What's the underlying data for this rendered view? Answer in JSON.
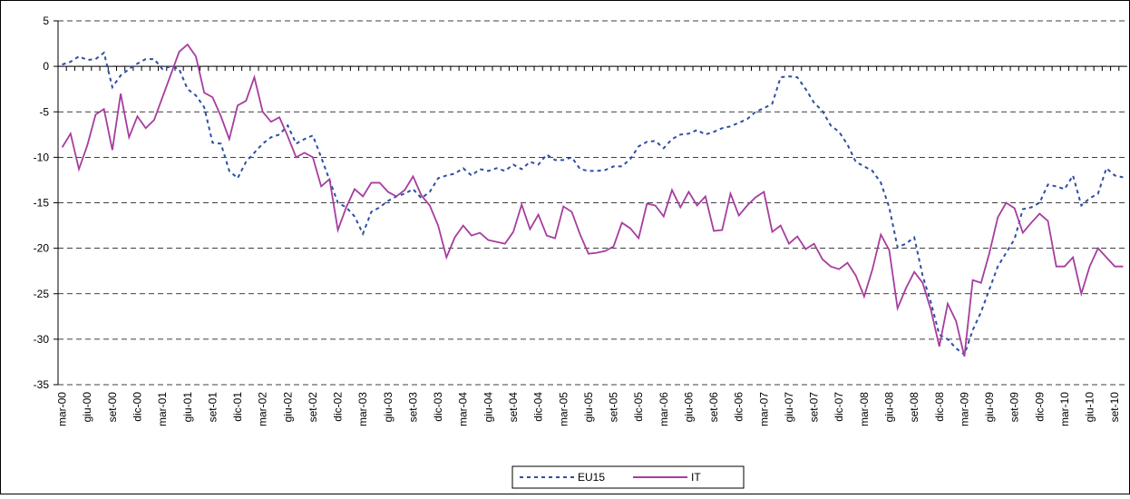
{
  "chart_data": {
    "type": "line",
    "categories": [
      "mar-00",
      null,
      null,
      "giu-00",
      null,
      null,
      "set-00",
      null,
      null,
      "dic-00",
      null,
      null,
      "mar-01",
      null,
      null,
      "giu-01",
      null,
      null,
      "set-01",
      null,
      null,
      "dic-01",
      null,
      null,
      "mar-02",
      null,
      null,
      "giu-02",
      null,
      null,
      "set-02",
      null,
      null,
      "dic-02",
      null,
      null,
      "mar-03",
      null,
      null,
      "giu-03",
      null,
      null,
      "set-03",
      null,
      null,
      "dic-03",
      null,
      null,
      "mar-04",
      null,
      null,
      "giu-04",
      null,
      null,
      "set-04",
      null,
      null,
      "dic-04",
      null,
      null,
      "mar-05",
      null,
      null,
      "giu-05",
      null,
      null,
      "set-05",
      null,
      null,
      "dic-05",
      null,
      null,
      "mar-06",
      null,
      null,
      "giu-06",
      null,
      null,
      "set-06",
      null,
      null,
      "dic-06",
      null,
      null,
      "mar-07",
      null,
      null,
      "giu-07",
      null,
      null,
      "set-07",
      null,
      null,
      "dic-07",
      null,
      null,
      "mar-08",
      null,
      null,
      "giu-08",
      null,
      null,
      "set-08",
      null,
      null,
      "dic-08",
      null,
      null,
      "mar-09",
      null,
      null,
      "giu-09",
      null,
      null,
      "set-09",
      null,
      null,
      "dic-09",
      null,
      null,
      "mar-10",
      null,
      null,
      "giu-10",
      null,
      null,
      "set-10",
      null
    ],
    "series": [
      {
        "name": "EU15",
        "color": "#2e4fa3",
        "style": "dashed",
        "values": [
          0.2,
          0.5,
          1.1,
          0.7,
          0.8,
          1.5,
          -2.3,
          -1,
          -0.3,
          0.3,
          0.8,
          0.8,
          -0.3,
          0,
          -0.3,
          -2.5,
          -3.2,
          -4.5,
          -8.4,
          -8.5,
          -11.5,
          -12.3,
          -10.5,
          -9.5,
          -8.5,
          -7.8,
          -7.5,
          -6.5,
          -8.5,
          -8,
          -7.6,
          -10,
          -12.5,
          -15,
          -15.5,
          -16.5,
          -18.4,
          -16,
          -15.5,
          -14.8,
          -14.3,
          -14,
          -13.5,
          -14.5,
          -13.8,
          -12.3,
          -12,
          -11.8,
          -11.2,
          -12,
          -11.3,
          -11.5,
          -11.2,
          -11.5,
          -10.8,
          -11.3,
          -10.5,
          -10.8,
          -9.7,
          -10.3,
          -10.3,
          -10,
          -11.3,
          -11.5,
          -11.5,
          -11.4,
          -11,
          -11,
          -10.2,
          -8.8,
          -8.3,
          -8.2,
          -9,
          -8,
          -7.5,
          -7.4,
          -7,
          -7.5,
          -7.2,
          -6.8,
          -6.6,
          -6.2,
          -5.8,
          -5,
          -4.6,
          -4.1,
          -1.2,
          -1.1,
          -1.2,
          -2.5,
          -4,
          -4.9,
          -6.5,
          -7.2,
          -8.6,
          -10.5,
          -11,
          -11.5,
          -12.8,
          -15.5,
          -19.9,
          -19.5,
          -18.8,
          -23,
          -26,
          -29.5,
          -30,
          -31,
          -31.7,
          -29,
          -27,
          -24.5,
          -22,
          -20.5,
          -19,
          -15.7,
          -15.5,
          -15,
          -13,
          -13.2,
          -13.5,
          -12,
          -15.3,
          -14.5,
          -14,
          -11.2,
          -12,
          -12.2
        ]
      },
      {
        "name": "IT",
        "color": "#a63d9f",
        "style": "solid",
        "values": [
          -8.9,
          -7.4,
          -11.3,
          -8.7,
          -5.3,
          -4.7,
          -9.2,
          -3,
          -7.8,
          -5.5,
          -6.8,
          -5.9,
          -3.4,
          -0.9,
          1.6,
          2.4,
          1.1,
          -2.9,
          -3.4,
          -5.5,
          -8,
          -4.3,
          -3.8,
          -1.2,
          -5,
          -6.1,
          -5.6,
          -7.7,
          -10,
          -9.5,
          -10,
          -13.2,
          -12.4,
          -18,
          -15.5,
          -13.5,
          -14.3,
          -12.8,
          -12.8,
          -13.8,
          -14.3,
          -13.6,
          -12.1,
          -14.2,
          -15.3,
          -17.5,
          -21,
          -18.8,
          -17.5,
          -18.6,
          -18.3,
          -19.1,
          -19.3,
          -19.5,
          -18.2,
          -15.2,
          -17.9,
          -16.3,
          -18.6,
          -18.9,
          -15.4,
          -16,
          -18.5,
          -20.6,
          -20.5,
          -20.3,
          -19.8,
          -17.2,
          -17.8,
          -18.9,
          -15.1,
          -15.3,
          -16.5,
          -13.6,
          -15.5,
          -13.8,
          -15.3,
          -14.3,
          -18.1,
          -18,
          -14,
          -16.4,
          -15.3,
          -14.4,
          -13.8,
          -18.2,
          -17.5,
          -19.5,
          -18.7,
          -20.1,
          -19.5,
          -21.2,
          -22,
          -22.3,
          -21.6,
          -23,
          -25.3,
          -22.3,
          -18.5,
          -20.2,
          -26.6,
          -24.4,
          -22.6,
          -23.8,
          -26.8,
          -30.8,
          -26.1,
          -28,
          -31.9,
          -23.5,
          -23.8,
          -20.5,
          -16.6,
          -15,
          -15.6,
          -18.3,
          -17.2,
          -16.2,
          -17,
          -22,
          -22,
          -21,
          -25,
          -22,
          -20,
          -21,
          -22,
          -22
        ]
      }
    ],
    "ylim": [
      -35,
      5
    ],
    "yticks": [
      -35,
      -30,
      -25,
      -20,
      -15,
      -10,
      -5,
      0,
      5
    ],
    "grid": true,
    "legend": "bottom"
  }
}
